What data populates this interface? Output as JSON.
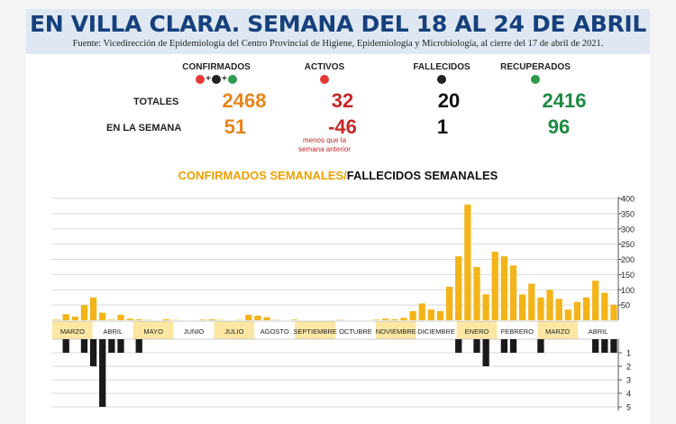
{
  "title": "EN VILLA CLARA. SEMANA DEL 18 AL 24 DE ABRIL",
  "source": "Fuente: Vicedirección de Epidemiología del Centro Provincial de Higiene, Epidemiología y Microbiología, al cierre del 17 de abril de 2021.",
  "stats": {
    "headers": {
      "confirmed": "CONFIRMADOS",
      "active": "ACTIVOS",
      "deceased": "FALLECIDOS",
      "recovered": "RECUPERADOS"
    },
    "plus": "+",
    "rows": {
      "totals_label": "TOTALES",
      "week_label": "EN LA SEMANA"
    },
    "totals": {
      "confirmed": "2468",
      "active": "32",
      "deceased": "20",
      "recovered": "2416"
    },
    "week": {
      "confirmed": "51",
      "active": "-46",
      "deceased": "1",
      "recovered": "96"
    },
    "active_note_line1": "menos que la",
    "active_note_line2": "semana anterior",
    "colors": {
      "confirmed": "#e8841a",
      "active": "#c62828",
      "deceased": "#111111",
      "recovered": "#1e8a43"
    }
  },
  "chart_title_part1": "CONFIRMADOS SEMANALES/",
  "chart_title_part2": "FALLECIDOS SEMANALES",
  "chart_data": [
    {
      "type": "bar",
      "title": "CONFIRMADOS SEMANALES",
      "months": [
        "MARZO",
        "ABRIL",
        "MAYO",
        "JUNIO",
        "JULIO",
        "AGOSTO",
        "SEPTIEMBRE",
        "OCTUBRE",
        "NOVIEMBRE",
        "DICIEMBRE",
        "ENERO",
        "FEBRERO",
        "MARZO",
        "ABRIL"
      ],
      "values": [
        2,
        20,
        12,
        50,
        75,
        25,
        2,
        18,
        5,
        3,
        1,
        0,
        3,
        1,
        0,
        0,
        2,
        3,
        1,
        0,
        1,
        18,
        15,
        10,
        1,
        0,
        2,
        0,
        0,
        0,
        0,
        1,
        0,
        0,
        0,
        2,
        5,
        3,
        8,
        30,
        55,
        35,
        30,
        110,
        210,
        380,
        175,
        85,
        225,
        210,
        180,
        85,
        120,
        75,
        100,
        70,
        35,
        60,
        75,
        130,
        90,
        51
      ],
      "ylim": [
        0,
        400
      ],
      "yticks": [
        50,
        100,
        150,
        200,
        250,
        300,
        350,
        400
      ],
      "color": "#f2b418"
    },
    {
      "type": "bar",
      "title": "FALLECIDOS SEMANALES",
      "values": [
        0,
        1,
        0,
        1,
        2,
        5,
        1,
        1,
        0,
        1,
        0,
        0,
        0,
        0,
        0,
        0,
        0,
        0,
        0,
        0,
        0,
        0,
        0,
        0,
        0,
        0,
        0,
        0,
        0,
        0,
        0,
        0,
        0,
        0,
        0,
        0,
        0,
        0,
        0,
        0,
        0,
        0,
        0,
        0,
        1,
        0,
        1,
        2,
        0,
        1,
        1,
        0,
        0,
        1,
        0,
        0,
        0,
        0,
        0,
        1,
        1,
        1
      ],
      "ylim": [
        0,
        5
      ],
      "yticks": [
        1,
        2,
        3,
        4,
        5
      ],
      "color": "#1a1a1a"
    }
  ]
}
